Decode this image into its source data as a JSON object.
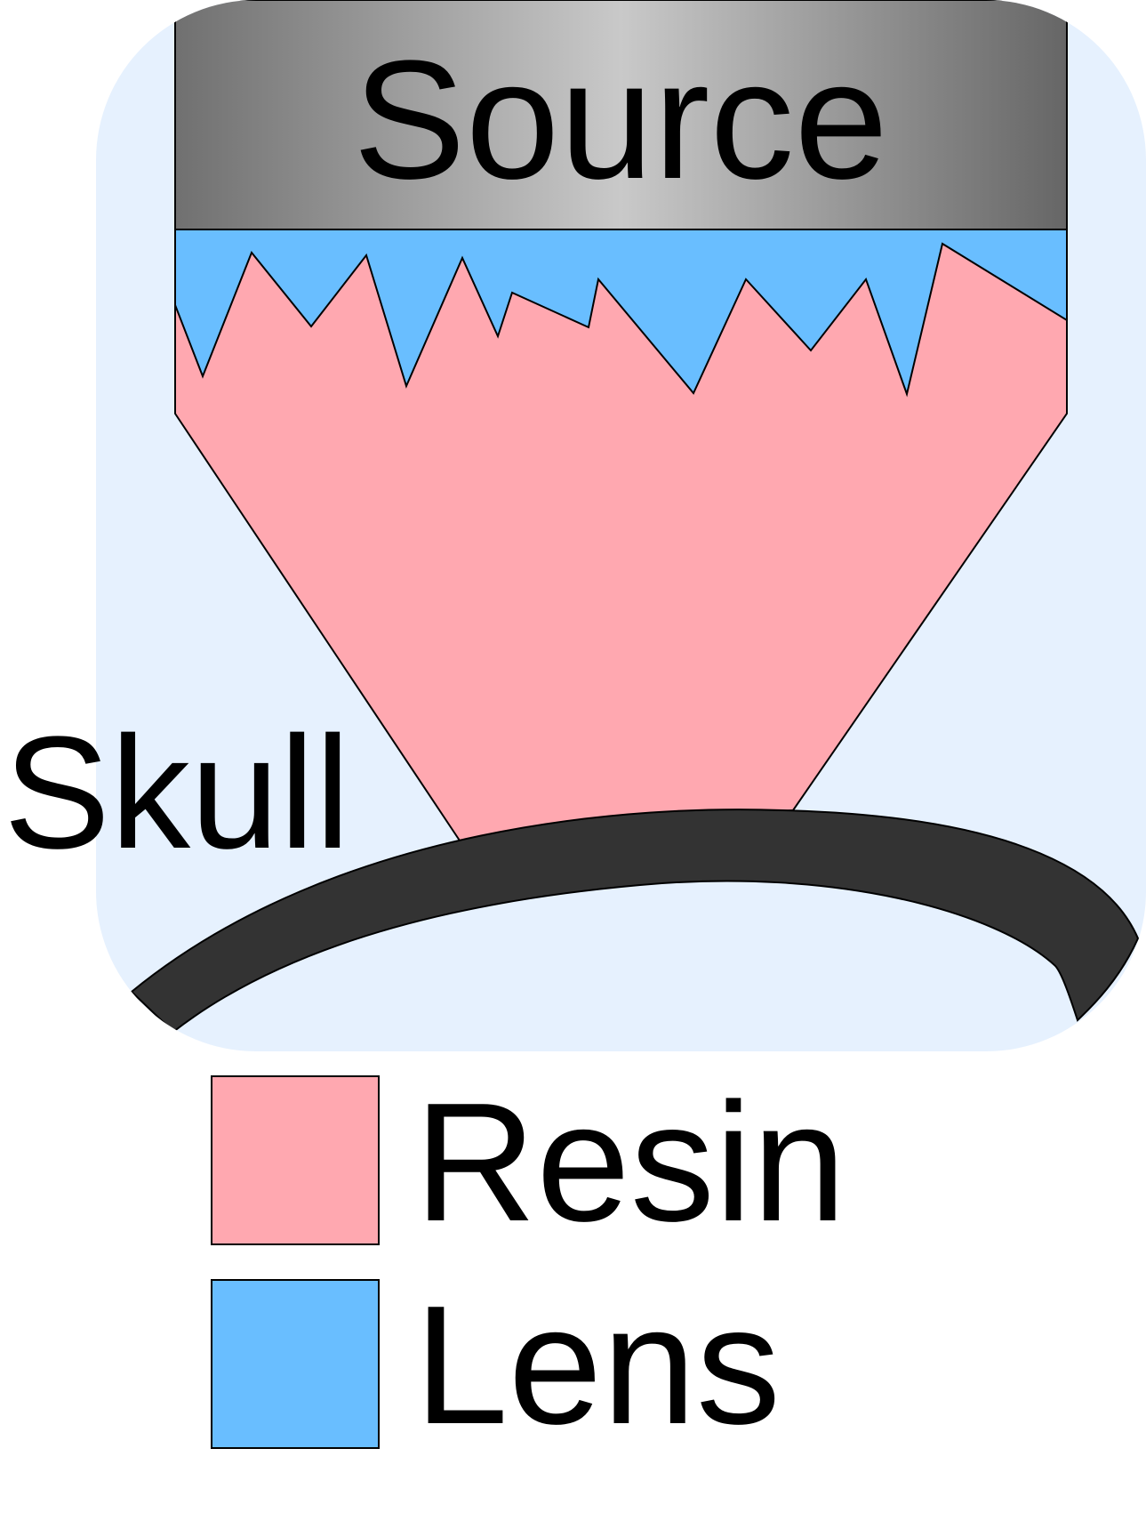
{
  "diagram": {
    "source_label": "Source",
    "skull_label": "Skull"
  },
  "legend": {
    "items": [
      {
        "label": "Resin",
        "color": "#FFA8B0"
      },
      {
        "label": "Lens",
        "color": "#69BEFF"
      }
    ]
  },
  "colors": {
    "background_panel": "#E6F1FE",
    "skull": "#333333",
    "source_gradient": [
      "#6E6E6E",
      "#C8C8C8",
      "#6A6A6A"
    ]
  }
}
